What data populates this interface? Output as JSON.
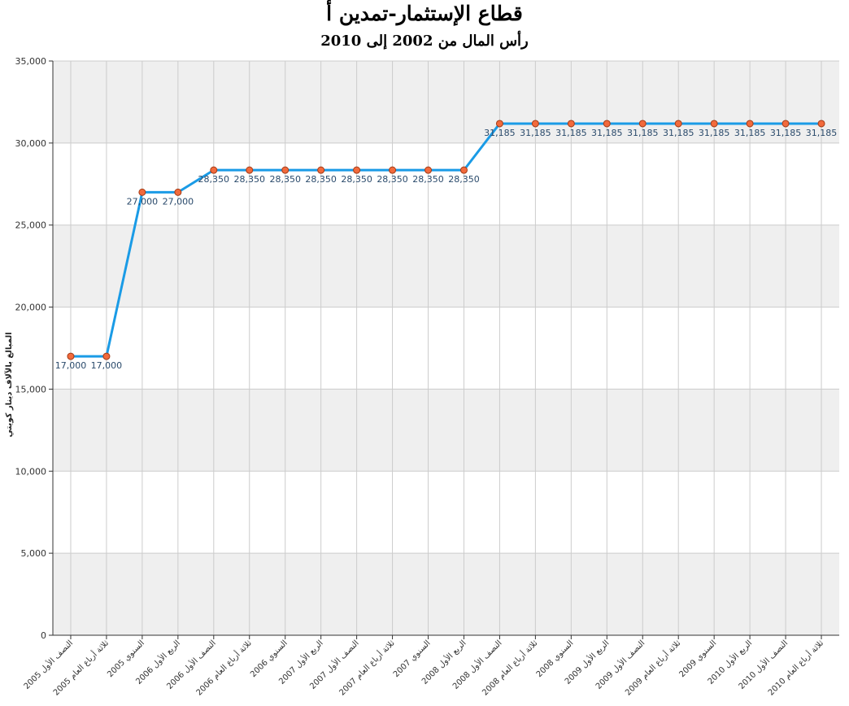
{
  "title": "قطاع الإستثمار-تمدين أ",
  "subtitle": "رأس المال من 2002 إلى 2010",
  "colors": {
    "line": "#1a9be6",
    "marker_fill": "#f26a3c",
    "marker_stroke": "#a33a15",
    "band": "#efefef",
    "grid": "#cccccc",
    "label": "#2a4a6b"
  },
  "chart_data": {
    "type": "line",
    "title": "قطاع الإستثمار-تمدين أ",
    "subtitle": "رأس المال من 2002 إلى 2010",
    "ylabel": "المبالغ بالآلاف دينار كويتي",
    "xlabel": "",
    "ylim": [
      0,
      35000
    ],
    "yticks": [
      0,
      5000,
      10000,
      15000,
      20000,
      25000,
      30000,
      35000
    ],
    "ytick_labels": [
      "0",
      "5,000",
      "10,000",
      "15,000",
      "20,000",
      "25,000",
      "30,000",
      "35,000"
    ],
    "grid": true,
    "categories": [
      "النصف الأول 2005",
      "ثلاثة أرباع العام 2005",
      "السنوي 2005",
      "الربع الأول 2006",
      "النصف الأول 2006",
      "ثلاثة أرباع العام 2006",
      "السنوي 2006",
      "الربع الأول 2007",
      "النصف الأول 2007",
      "ثلاثة أرباع العام 2007",
      "السنوي 2007",
      "الربع الأول 2008",
      "النصف الأول 2008",
      "ثلاثة أرباع العام 2008",
      "السنوي 2008",
      "الربع الأول 2009",
      "النصف الأول 2009",
      "ثلاثة أرباع العام 2009",
      "السنوي 2009",
      "الربع الأول 2010",
      "النصف الأول 2010",
      "ثلاثة أرباع العام 2010"
    ],
    "values": [
      17000,
      17000,
      27000,
      27000,
      28350,
      28350,
      28350,
      28350,
      28350,
      28350,
      28350,
      28350,
      31185,
      31185,
      31185,
      31185,
      31185,
      31185,
      31185,
      31185,
      31185,
      31185
    ],
    "value_labels": [
      "17,000",
      "17,000",
      "27,000",
      "27,000",
      "28,350",
      "28,350",
      "28,350",
      "28,350",
      "28,350",
      "28,350",
      "28,350",
      "28,350",
      "31,185",
      "31,185",
      "31,185",
      "31,185",
      "31,185",
      "31,185",
      "31,185",
      "31,185",
      "31,185",
      "31,185"
    ]
  }
}
